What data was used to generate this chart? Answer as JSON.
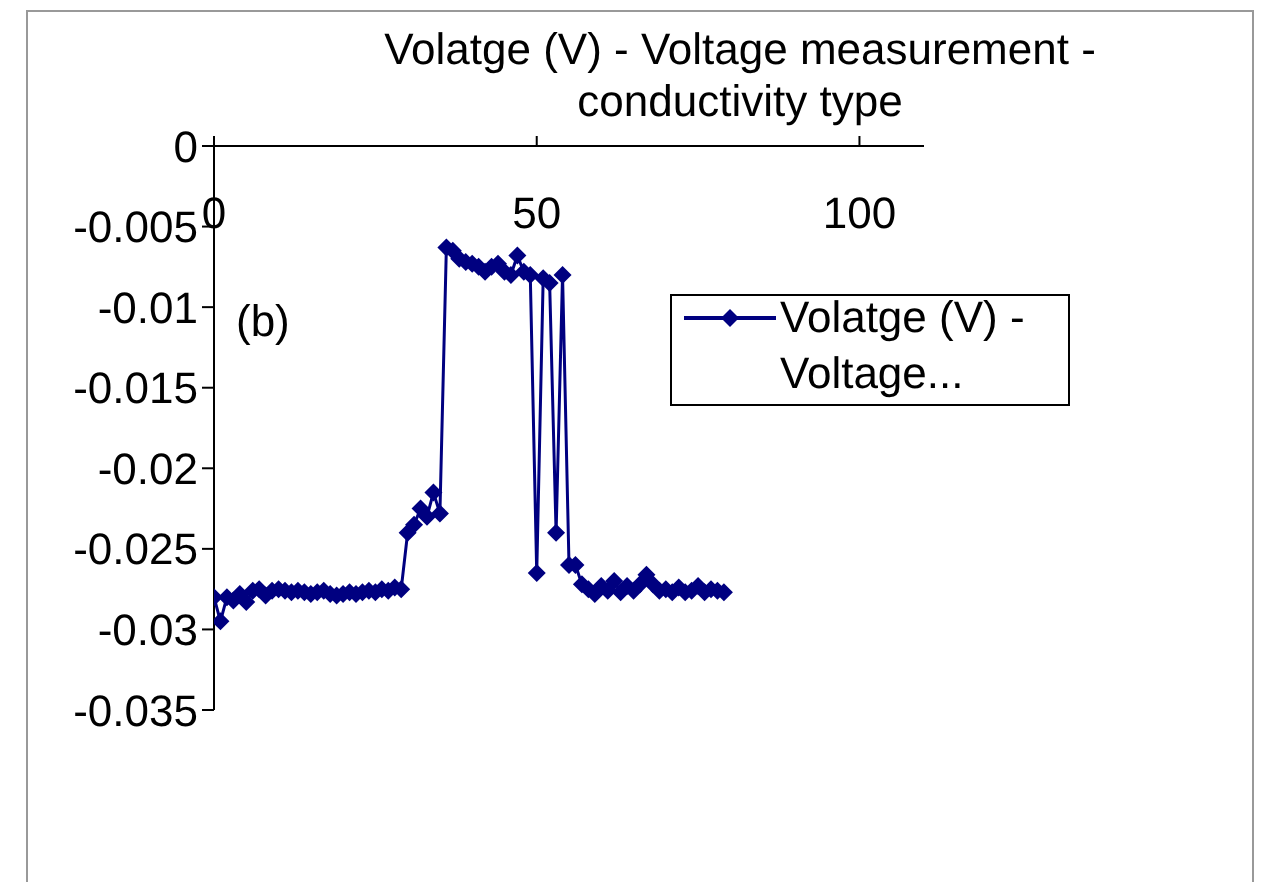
{
  "chart_data": {
    "type": "line",
    "title": "Volatge (V) - Voltage measurement - conductivity type",
    "annotations": [
      "(b)"
    ],
    "x": [
      0,
      1,
      2,
      3,
      4,
      5,
      6,
      7,
      8,
      9,
      10,
      11,
      12,
      13,
      14,
      15,
      16,
      17,
      18,
      19,
      20,
      21,
      22,
      23,
      24,
      25,
      26,
      27,
      28,
      29,
      30,
      31,
      32,
      33,
      34,
      35,
      36,
      37,
      38,
      39,
      40,
      41,
      42,
      43,
      44,
      45,
      46,
      47,
      48,
      49,
      50,
      51,
      52,
      53,
      54,
      55,
      56,
      57,
      58,
      59,
      60,
      61,
      62,
      63,
      64,
      65,
      66,
      67,
      68,
      69,
      70,
      71,
      72,
      73,
      74,
      75,
      76,
      77,
      78,
      79
    ],
    "series": [
      {
        "name": "Volatge (V) - Voltage...",
        "color": "#000080",
        "values": [
          -0.028,
          -0.0295,
          -0.028,
          -0.0282,
          -0.0278,
          -0.0283,
          -0.0276,
          -0.0275,
          -0.0279,
          -0.0276,
          -0.0275,
          -0.0276,
          -0.0277,
          -0.0276,
          -0.0277,
          -0.0278,
          -0.0277,
          -0.0276,
          -0.0278,
          -0.0279,
          -0.0278,
          -0.0277,
          -0.0278,
          -0.0277,
          -0.0276,
          -0.0277,
          -0.0275,
          -0.0276,
          -0.0274,
          -0.0275,
          -0.024,
          -0.0235,
          -0.0225,
          -0.023,
          -0.0215,
          -0.0228,
          -0.0063,
          -0.0065,
          -0.007,
          -0.0072,
          -0.0073,
          -0.0075,
          -0.0078,
          -0.0075,
          -0.0073,
          -0.0078,
          -0.008,
          -0.0068,
          -0.0078,
          -0.008,
          -0.0265,
          -0.0082,
          -0.0085,
          -0.024,
          -0.008,
          -0.026,
          -0.026,
          -0.0272,
          -0.0275,
          -0.0278,
          -0.0273,
          -0.0276,
          -0.027,
          -0.0277,
          -0.0273,
          -0.0276,
          -0.0272,
          -0.0266,
          -0.0272,
          -0.0276,
          -0.0275,
          -0.0277,
          -0.0274,
          -0.0277,
          -0.0276,
          -0.0273,
          -0.0277,
          -0.0275,
          -0.0276,
          -0.0277
        ]
      }
    ],
    "xlim": [
      0,
      110
    ],
    "xticks": [
      0,
      50,
      100
    ],
    "ylim": [
      -0.035,
      0
    ],
    "yticks": [
      0,
      -0.005,
      -0.01,
      -0.015,
      -0.02,
      -0.025,
      -0.03,
      -0.035
    ],
    "legend": "top right",
    "marker": "diamond",
    "line_style": "solid"
  }
}
